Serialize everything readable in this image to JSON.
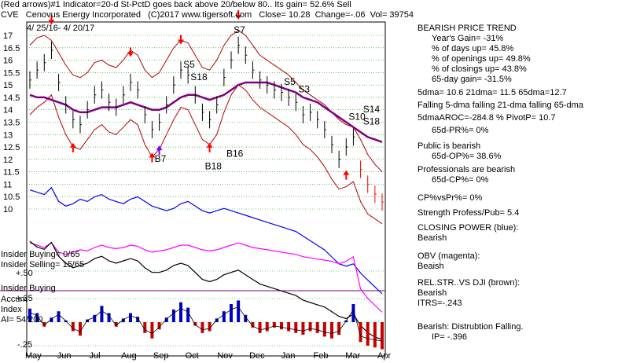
{
  "header": {
    "line1": "(Red arrows)#1 Indicator=20-d St-PctD goes back above 20/below 80.. Its gain= 52.6% Sell",
    "symbol": "CVE",
    "company": "Cenovus Energy Incorporated",
    "copyright": "(C)2017 www.tigersoft.com",
    "close": "Close=  10.28",
    "change": "Change=-.06",
    "vol": "Vol= 39754",
    "date_range": "4/ 25/16- 4/ 20/17"
  },
  "sidebar": {
    "trend_title": "BEARISH PRICE TREND",
    "years_gain": "Year's Gain= -31%",
    "days_up": "% of days up= 45.8%",
    "openings_up": "% of openings up= 49.8%",
    "closings_up": "% of closings up= 43.8%",
    "gain65": "65-day gain= -31.5%",
    "dma": "5dma= 10.6  21dma= 11.5  65dma=12.7",
    "falling": "Falling 5-dma falling 21-dma falling 65-dma",
    "aroc": "5dmaAROC=-284.8 %  PivotP= 10.7",
    "pr": "65d-PR%= 0%",
    "public": "Public is bearish",
    "op": "65d-OP%= 38.6%",
    "professionals": "Professionals are bearish",
    "cp": "65d-CP%= 0%",
    "cpvspr": "CP%vsPr%=  0%",
    "strength": "Strength Profess/Pub= 5.4",
    "closing_power": "CLOSING POWER (blue):",
    "cp_state": "Bearish",
    "obv": "OBV (magenta):",
    "obv_state": "Beaish",
    "relstr": "REL.STR..VS DJI (brown):",
    "relstr_state": "Bearish",
    "itrs": "ITRS=-.243",
    "dist": "Bearish: Distrubtion Falling.",
    "ip": "IP= -.396"
  },
  "left_labels": {
    "insider_buying_count": "Insider Buying= 0/65",
    "insider_selling_count": "Insider Selling= 15/65",
    "plus50": "+.50",
    "insider_buying": "Insider Buying",
    "accum": "Accum",
    "plus25": "+.25",
    "index": "Index",
    "ai": "AI= 54/200",
    "minus25": "-.25"
  },
  "signals": [
    "S5",
    "S18",
    "S7",
    "S5",
    "S3",
    "S14",
    "S10",
    "S18",
    "B7",
    "B16",
    "B18"
  ],
  "colors": {
    "price_bars": "#000000",
    "band": "#b40000",
    "ma": "#800080",
    "closing_power": "#0000ff",
    "obv": "#ff00ff",
    "rel_strength": "#000000",
    "accum_pos": "#0000c8",
    "accum_neg": "#c80000",
    "arrow_red": "#ff0000",
    "arrow_purple": "#8000ff"
  },
  "chart_data": {
    "type": "line",
    "title": "CVE Cenovus Energy Incorporated",
    "ylabel": "",
    "price_ticks": [
      17,
      16.5,
      16,
      15.5,
      15,
      14.5,
      14,
      13.5,
      13,
      12.5,
      12,
      11.5,
      11,
      10.5,
      10
    ],
    "ylim": [
      10,
      17.2
    ],
    "months": [
      "May",
      "Jun",
      "Jul",
      "Aug",
      "Sep",
      "Oct",
      "Nov",
      "Dec",
      "Jan",
      "Feb",
      "Mar",
      "Apr"
    ],
    "close_series": [
      15.2,
      15.6,
      15.9,
      16.4,
      15.1,
      14.2,
      13.6,
      13.4,
      14.0,
      14.6,
      14.8,
      14.3,
      14.1,
      14.6,
      15.1,
      14.8,
      13.8,
      13.2,
      13.5,
      14.2,
      15.0,
      15.6,
      15.4,
      14.6,
      13.9,
      13.6,
      14.2,
      15.3,
      16.0,
      16.6,
      16.2,
      15.6,
      15.2,
      15.0,
      14.8,
      14.7,
      14.5,
      14.3,
      13.8,
      13.9,
      13.6,
      13.2,
      12.6,
      12.0,
      12.5,
      12.9,
      11.6,
      11.0,
      10.6,
      10.28
    ],
    "upper_band": [
      16.6,
      16.9,
      17.0,
      16.8,
      16.3,
      15.8,
      15.4,
      15.3,
      15.5,
      15.9,
      16.0,
      15.8,
      15.7,
      16.0,
      16.4,
      16.2,
      15.6,
      15.3,
      15.5,
      16.0,
      16.5,
      16.8,
      16.7,
      16.2,
      15.7,
      15.6,
      16.0,
      16.6,
      17.0,
      17.2,
      17.0,
      16.6,
      16.2,
      16.0,
      15.8,
      15.6,
      15.4,
      15.1,
      14.8,
      14.6,
      14.4,
      14.2,
      13.9,
      13.6,
      13.4,
      13.3,
      12.8,
      12.2,
      11.8,
      11.5
    ],
    "lower_band": [
      13.8,
      14.1,
      14.3,
      14.6,
      13.7,
      13.0,
      12.5,
      12.4,
      12.8,
      13.2,
      13.4,
      13.1,
      13.0,
      13.3,
      13.6,
      13.4,
      12.6,
      12.1,
      12.4,
      13.0,
      13.6,
      14.1,
      14.0,
      13.4,
      12.8,
      12.6,
      13.0,
      13.9,
      14.6,
      15.0,
      14.8,
      14.4,
      14.1,
      13.9,
      13.7,
      13.5,
      13.3,
      13.0,
      12.6,
      12.4,
      12.1,
      11.7,
      11.2,
      10.8,
      10.9,
      11.1,
      10.3,
      9.8,
      9.6,
      9.4
    ],
    "ma65": [
      14.6,
      14.5,
      14.5,
      14.4,
      14.3,
      14.2,
      14.0,
      13.9,
      13.9,
      14.0,
      14.1,
      14.1,
      14.1,
      14.2,
      14.3,
      14.2,
      14.1,
      14.0,
      14.0,
      14.1,
      14.3,
      14.5,
      14.6,
      14.6,
      14.5,
      14.4,
      14.5,
      14.6,
      14.8,
      15.0,
      15.1,
      15.1,
      15.1,
      15.1,
      15.0,
      14.9,
      14.8,
      14.7,
      14.5,
      14.4,
      14.3,
      14.1,
      13.9,
      13.7,
      13.5,
      13.3,
      13.1,
      12.9,
      12.8,
      12.7
    ],
    "series": [
      {
        "name": "CLOSING POWER (blue)",
        "values": [
          0.9,
          0.88,
          0.86,
          0.92,
          0.8,
          0.76,
          0.78,
          0.82,
          0.8,
          0.84,
          0.86,
          0.82,
          0.8,
          0.78,
          0.82,
          0.84,
          0.8,
          0.76,
          0.74,
          0.72,
          0.74,
          0.78,
          0.8,
          0.76,
          0.72,
          0.7,
          0.72,
          0.74,
          0.72,
          0.7,
          0.68,
          0.66,
          0.64,
          0.62,
          0.6,
          0.58,
          0.56,
          0.54,
          0.5,
          0.46,
          0.42,
          0.38,
          0.32,
          0.26,
          0.24,
          0.26,
          0.18,
          0.12,
          0.06,
          0.0
        ]
      },
      {
        "name": "OBV (magenta)",
        "values": [
          0.7,
          0.68,
          0.66,
          0.7,
          0.62,
          0.6,
          0.62,
          0.64,
          0.63,
          0.66,
          0.68,
          0.66,
          0.65,
          0.66,
          0.68,
          0.67,
          0.64,
          0.62,
          0.63,
          0.64,
          0.66,
          0.68,
          0.68,
          0.66,
          0.64,
          0.63,
          0.64,
          0.66,
          0.68,
          0.7,
          0.68,
          0.66,
          0.65,
          0.64,
          0.63,
          0.62,
          0.61,
          0.6,
          0.58,
          0.57,
          0.56,
          0.55,
          0.54,
          0.52,
          0.54,
          0.58,
          0.3,
          0.22,
          0.16,
          0.1
        ]
      },
      {
        "name": "REL.STR..VS DJI (brown)",
        "values": [
          0.85,
          0.8,
          0.78,
          0.84,
          0.72,
          0.66,
          0.62,
          0.64,
          0.66,
          0.7,
          0.72,
          0.68,
          0.66,
          0.68,
          0.7,
          0.68,
          0.62,
          0.58,
          0.58,
          0.6,
          0.64,
          0.66,
          0.64,
          0.58,
          0.52,
          0.5,
          0.52,
          0.56,
          0.58,
          0.6,
          0.56,
          0.52,
          0.48,
          0.46,
          0.44,
          0.42,
          0.4,
          0.38,
          0.34,
          0.32,
          0.3,
          0.28,
          0.24,
          0.2,
          0.18,
          0.22,
          0.12,
          0.06,
          0.02,
          0.0
        ]
      }
    ],
    "accum_index": [
      0.15,
      0.1,
      -0.05,
      0.05,
      0.12,
      0.02,
      -0.1,
      -0.15,
      0.03,
      0.08,
      0.18,
      0.1,
      -0.05,
      0.04,
      0.1,
      0.06,
      -0.12,
      -0.18,
      -0.08,
      0.05,
      0.14,
      0.22,
      0.16,
      -0.04,
      -0.12,
      -0.1,
      0.04,
      0.12,
      0.2,
      0.24,
      0.08,
      -0.06,
      -0.12,
      -0.1,
      -0.06,
      -0.08,
      -0.1,
      -0.12,
      -0.14,
      -0.1,
      -0.12,
      -0.16,
      -0.18,
      -0.14,
      0.02,
      0.2,
      -0.22,
      -0.26,
      -0.28,
      -0.3
    ],
    "accum_ticks": [
      0.5,
      0.25,
      -0.25
    ]
  }
}
